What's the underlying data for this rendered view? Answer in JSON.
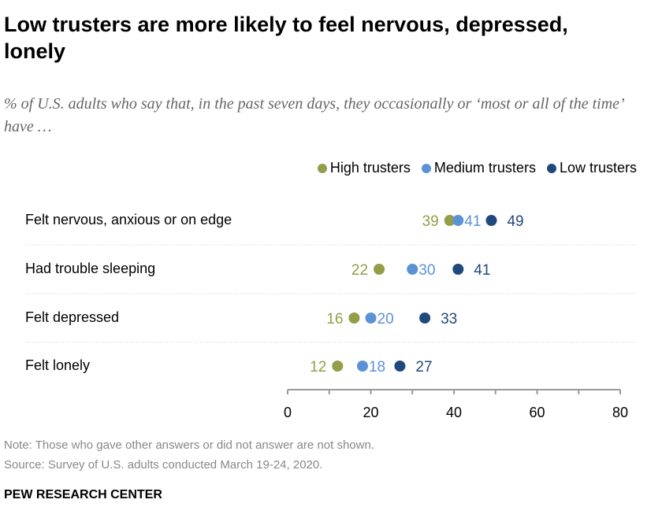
{
  "title": "Low trusters are more likely to feel nervous, depressed, lonely",
  "subtitle": "% of U.S. adults who say that, in the past seven days, they occasionally or ‘most or all of the time’ have …",
  "note": "Note: Those who gave other answers or did not answer are not shown.",
  "source": "Source: Survey of U.S. adults conducted March 19-24, 2020.",
  "brand": "PEW RESEARCH CENTER",
  "chart_data": {
    "type": "dot",
    "categories": [
      "Felt nervous, anxious or on edge",
      "Had trouble sleeping",
      "Felt depressed",
      "Felt lonely"
    ],
    "series": [
      {
        "name": "High trusters",
        "color": "#949d48",
        "values": [
          39,
          22,
          16,
          12
        ]
      },
      {
        "name": "Medium trusters",
        "color": "#5b92d6",
        "values": [
          41,
          30,
          20,
          18
        ]
      },
      {
        "name": "Low trusters",
        "color": "#1f497d",
        "values": [
          49,
          41,
          33,
          27
        ]
      }
    ],
    "xlim": [
      0,
      80
    ],
    "xticks": [
      0,
      20,
      40,
      60,
      80
    ],
    "legend": "top-right",
    "grid": false
  }
}
